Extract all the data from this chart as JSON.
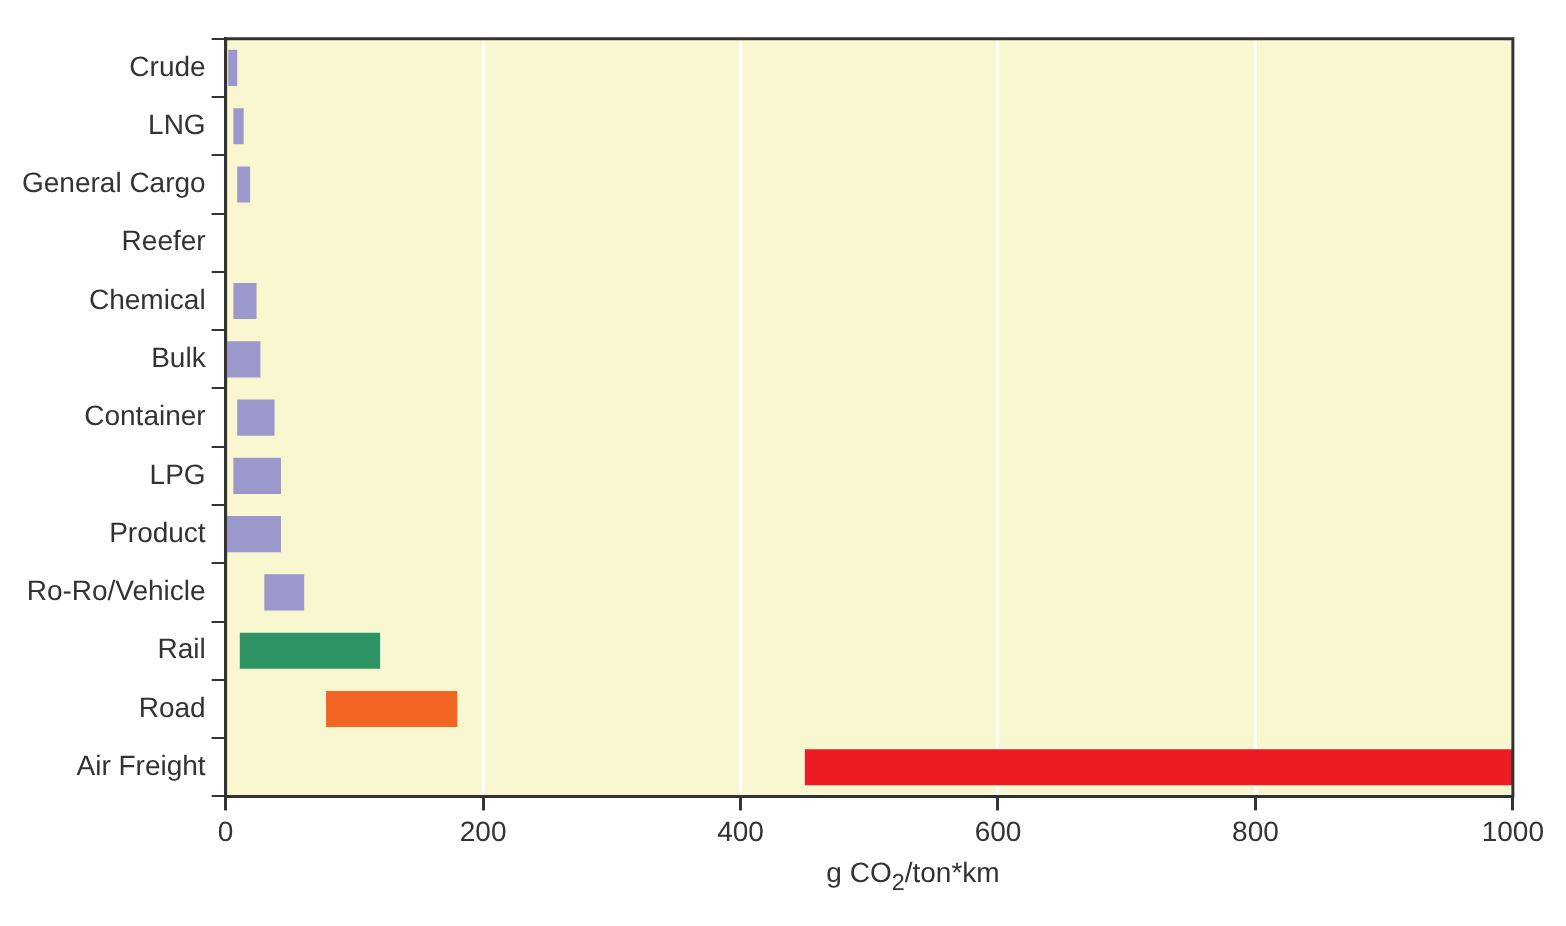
{
  "chart_data": {
    "type": "bar",
    "orientation": "horizontal",
    "xlabel": "g CO$_{2}$/ton*km",
    "categories": [
      "Crude",
      "LNG",
      "General Cargo",
      "Reefer",
      "Chemical",
      "Bulk",
      "Container",
      "LPG",
      "Product",
      "Ro-Ro/Vehicle",
      "Rail",
      "Road",
      "Air Freight"
    ],
    "base": [
      2,
      6,
      9,
      null,
      6,
      0,
      9,
      6,
      0,
      30,
      11,
      78,
      450
    ],
    "values": [
      7,
      8,
      10,
      null,
      18,
      27,
      29,
      37,
      43,
      31,
      109,
      102,
      550
    ],
    "colors": [
      "#9b98cc",
      "#9b98cc",
      "#9b98cc",
      "#9b98cc",
      "#9b98cc",
      "#9b98cc",
      "#9b98cc",
      "#9b98cc",
      "#9b98cc",
      "#9b98cc",
      "#2e9465",
      "#f26522",
      "#ed1c24"
    ],
    "xlim": [
      0,
      1000
    ],
    "xticks": [
      0,
      200,
      400,
      600,
      800,
      1000
    ],
    "grid": "x",
    "legend": false
  }
}
